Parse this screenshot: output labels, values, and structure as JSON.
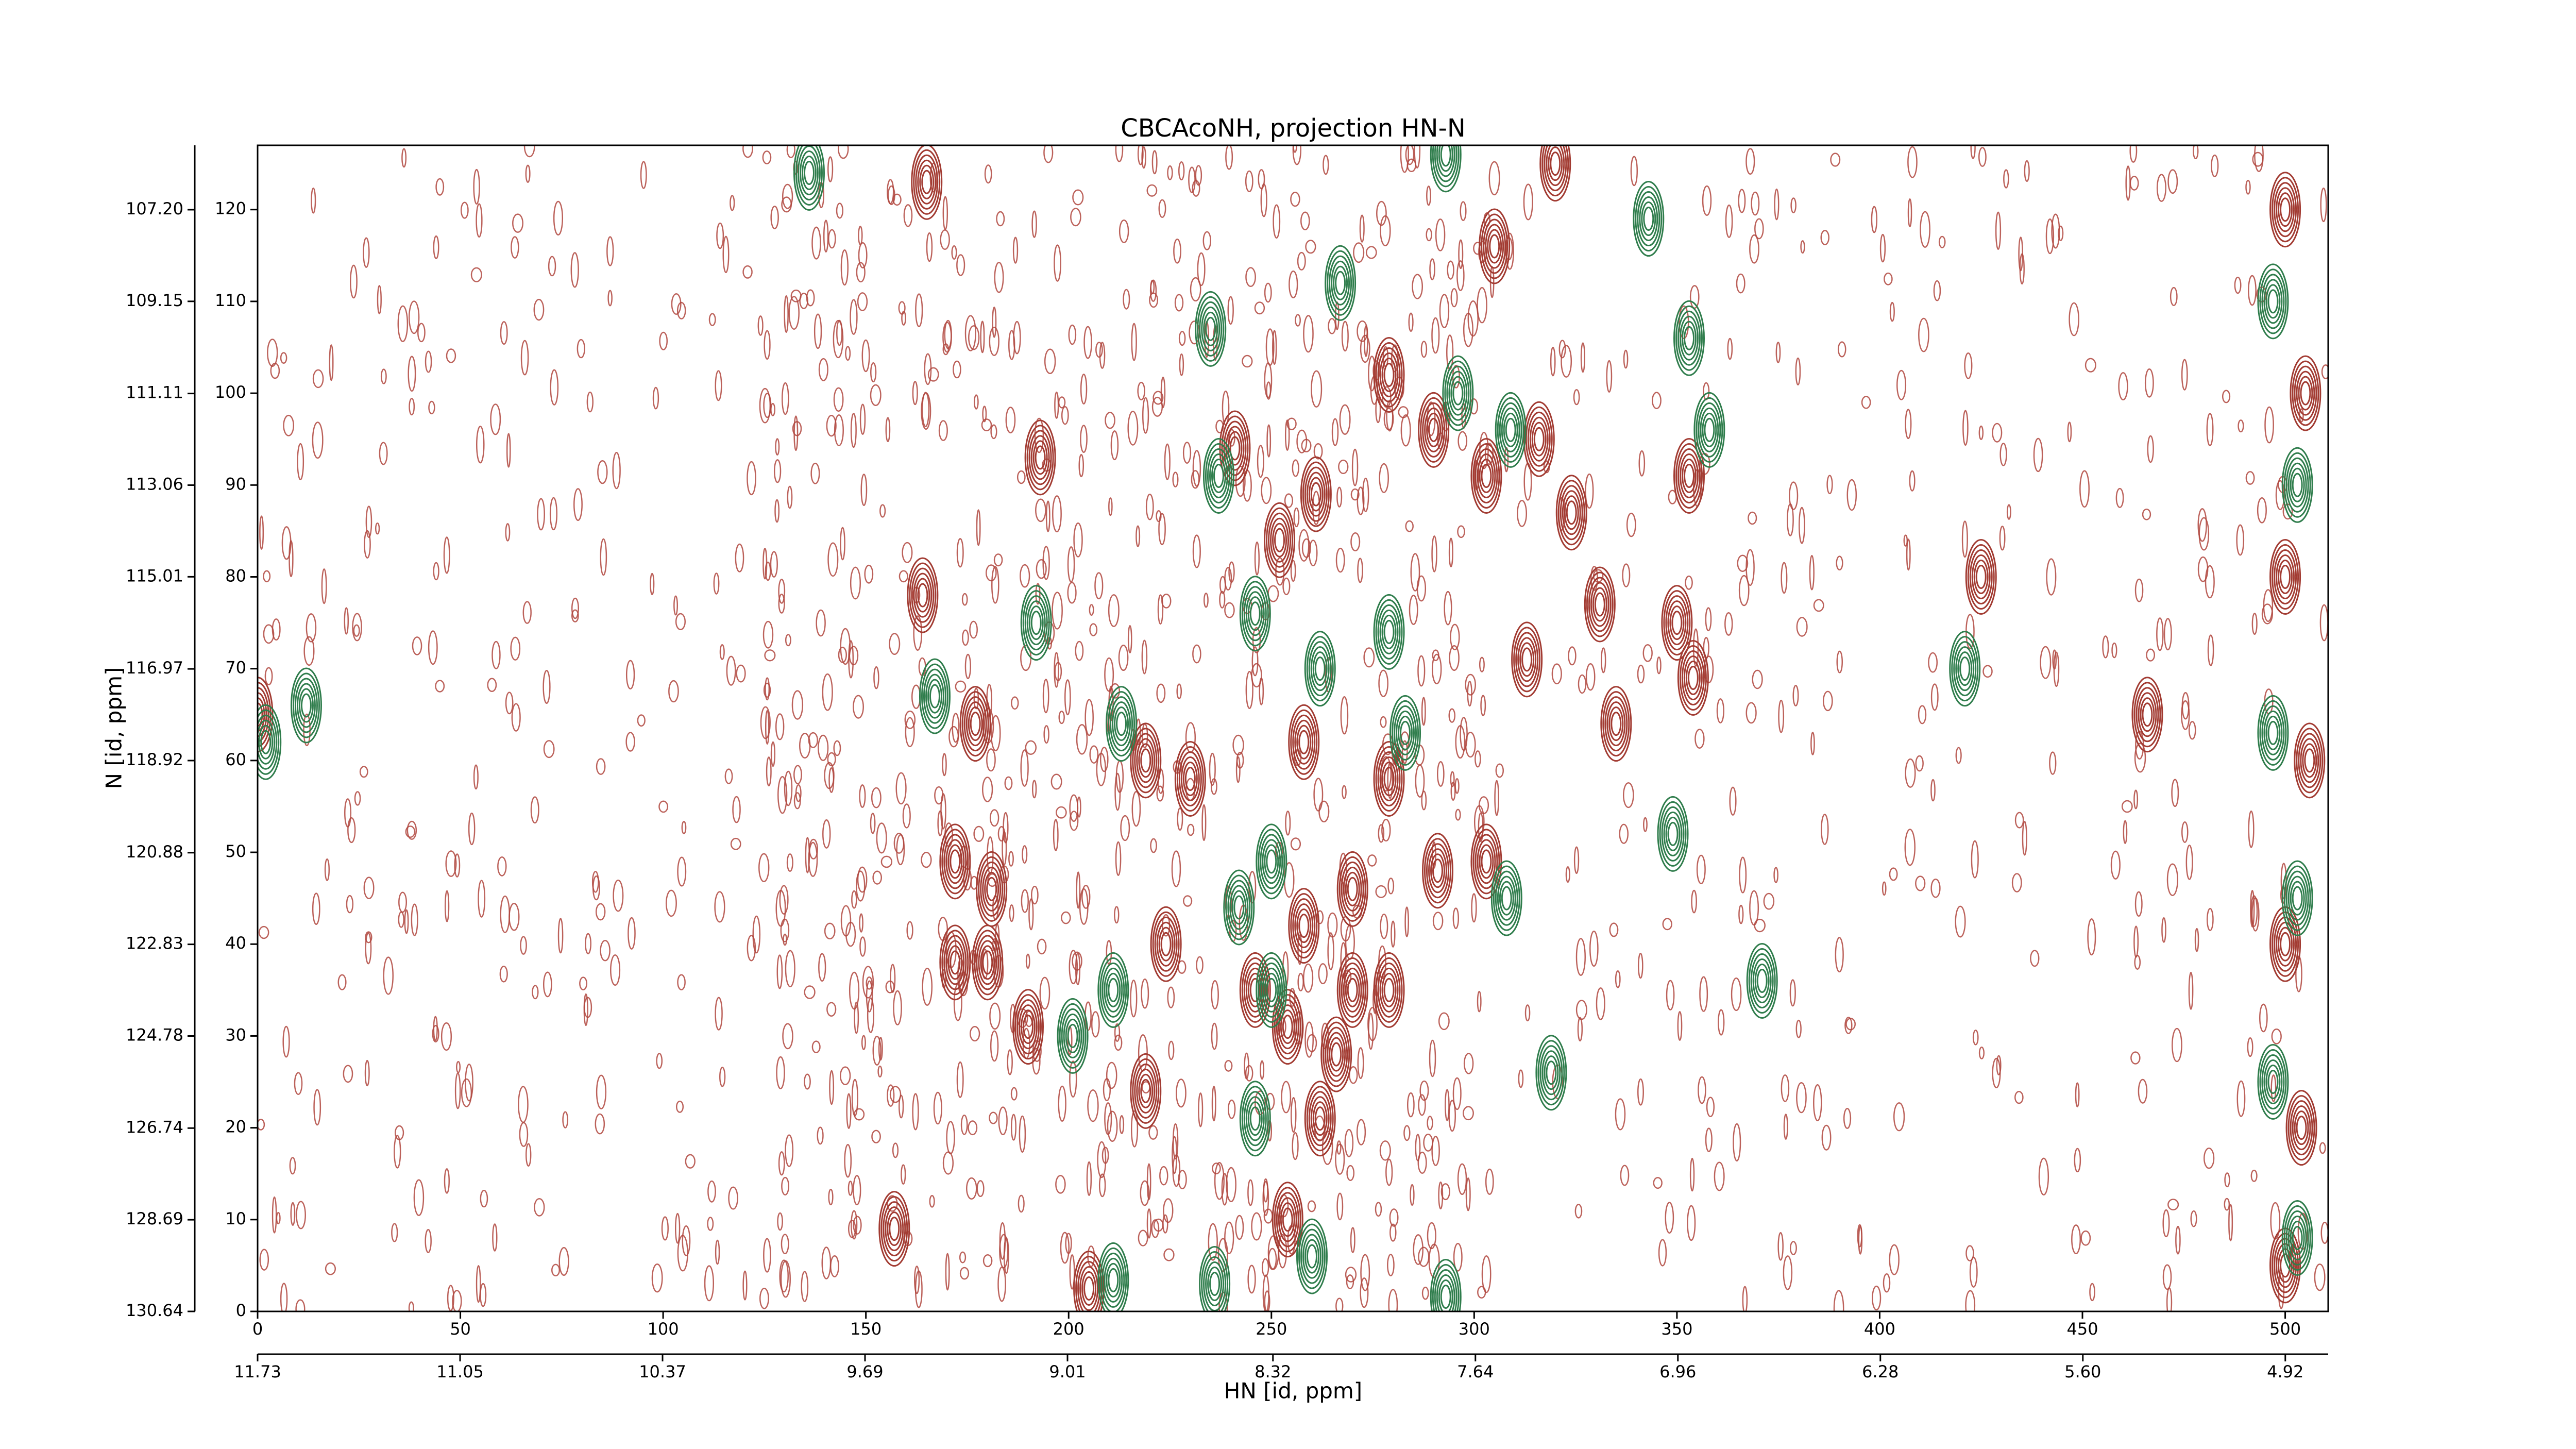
{
  "chart_data": {
    "type": "contour",
    "title": "CBCAcoNH, projection HN-N",
    "xlabel": "HN [id, ppm]",
    "ylabel": "N [id, ppm]",
    "xlim": [
      0,
      510.6
    ],
    "xticks": [
      0,
      50,
      100,
      150,
      200,
      250,
      300,
      350,
      400,
      450,
      500
    ],
    "ylim": [
      0,
      127
    ],
    "yticks": [
      0,
      10,
      20,
      30,
      40,
      50,
      60,
      70,
      80,
      90,
      100,
      110,
      120
    ],
    "x2lim": [
      11.73,
      4.776
    ],
    "x2ticks": [
      11.73,
      11.05,
      10.37,
      9.69,
      9.01,
      8.32,
      7.64,
      6.96,
      6.28,
      {
        "value": 5.6,
        "label": "5.60"
      },
      4.92
    ],
    "y2lim": [
      130.64,
      105.83
    ],
    "y2ticks": [
      {
        "value": 107.2,
        "label": "107.20"
      },
      109.15,
      111.11,
      113.06,
      115.01,
      116.97,
      118.92,
      120.88,
      122.83,
      124.78,
      126.74,
      128.69,
      130.64
    ],
    "series": [
      {
        "color": "#a23b32",
        "x": [
          320,
          165,
          241,
          261,
          252,
          193,
          290,
          303,
          316,
          324,
          279,
          305,
          353,
          164,
          331,
          350,
          354,
          313,
          335,
          425,
          177,
          219,
          230,
          258,
          279,
          270,
          258,
          279,
          270,
          254,
          303,
          291,
          172,
          181,
          172,
          180,
          190,
          224,
          246,
          219,
          262,
          157,
          205,
          254,
          266,
          466,
          0,
          500,
          505,
          500,
          506,
          500,
          504,
          500
        ],
        "y": [
          125,
          123,
          94,
          89,
          84,
          93,
          96,
          91,
          95,
          87,
          102,
          116,
          91,
          78,
          77,
          75,
          69,
          71,
          64,
          80,
          64,
          60,
          58,
          62,
          58,
          46,
          42,
          35,
          35,
          31,
          49,
          48,
          49,
          46,
          38,
          38,
          31,
          40,
          35,
          24,
          21,
          9,
          2.5,
          10,
          28,
          65,
          65,
          120,
          100,
          80,
          60,
          40,
          20,
          5
        ]
      },
      {
        "color": "#2f7d4c",
        "x": [
          136,
          343,
          267,
          235,
          353,
          296,
          309,
          237,
          358,
          192,
          167,
          213,
          246,
          262,
          283,
          279,
          421,
          349,
          308,
          250,
          242,
          250,
          201,
          211,
          371,
          319,
          246,
          260,
          211,
          236,
          293,
          2,
          12,
          293,
          497,
          503,
          497,
          503,
          497,
          503
        ],
        "y": [
          124,
          119,
          112,
          107,
          106,
          100,
          96,
          91,
          96,
          75,
          67,
          64,
          76,
          70,
          63,
          74,
          70,
          52,
          45,
          49,
          44,
          35,
          30,
          35,
          36,
          26,
          21,
          6,
          3.4,
          3,
          1.6,
          62,
          66,
          126,
          110,
          90,
          63,
          45,
          25,
          8
        ]
      }
    ]
  }
}
